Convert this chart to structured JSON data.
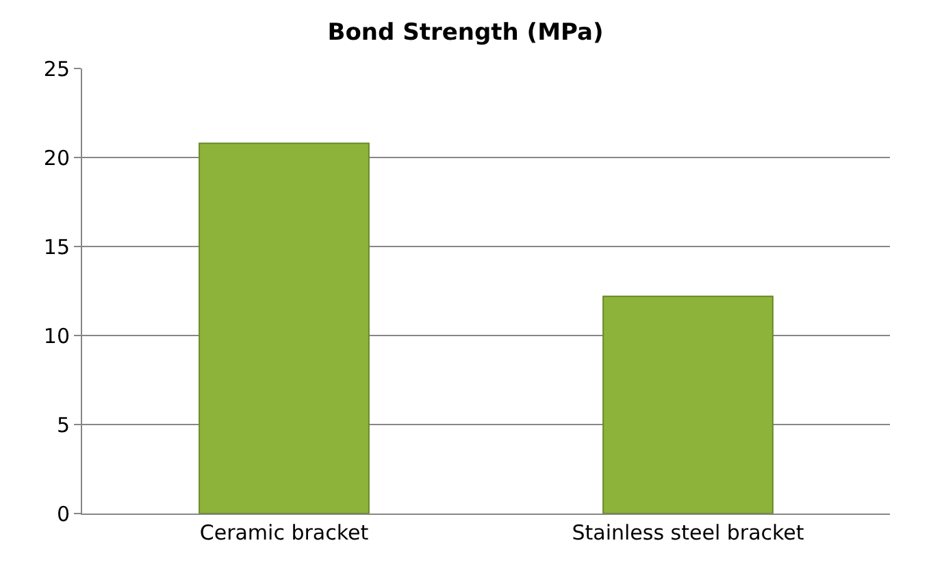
{
  "chart_data": {
    "type": "bar",
    "title": "Bond Strength (MPa)",
    "categories": [
      "Ceramic bracket",
      "Stainless steel bracket"
    ],
    "values": [
      20.8,
      12.2
    ],
    "color": "#8db33a",
    "ylim": [
      0,
      25
    ],
    "yticks": [
      0,
      5,
      10,
      15,
      20,
      25
    ],
    "grid": "y"
  }
}
